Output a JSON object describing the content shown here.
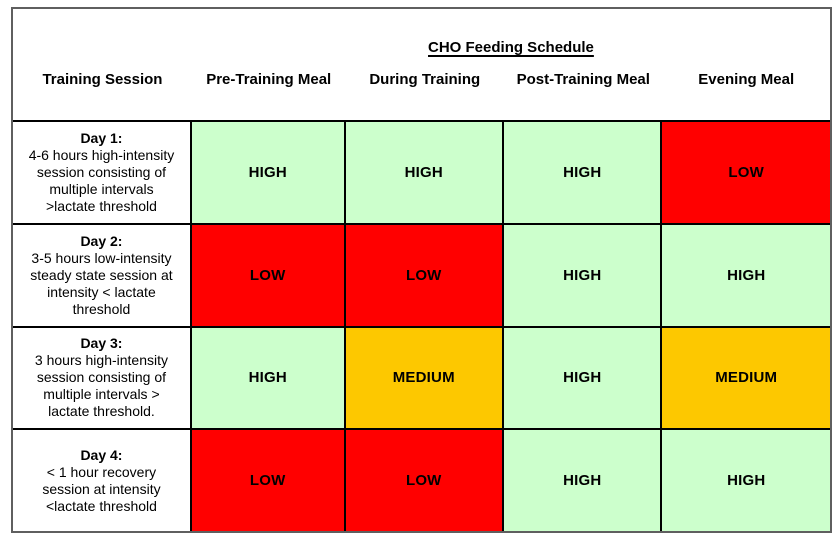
{
  "title": "CHO Feeding Schedule",
  "columns": [
    "Training Session",
    "Pre-Training Meal",
    "During Training",
    "Post-Training Meal",
    "Evening Meal"
  ],
  "rows": [
    {
      "day": "Day 1:",
      "description": "4-6 hours high-intensity session consisting of multiple intervals >lactate threshold",
      "cells": [
        {
          "label": "HIGH",
          "level": "high"
        },
        {
          "label": "HIGH",
          "level": "high"
        },
        {
          "label": "HIGH",
          "level": "high"
        },
        {
          "label": "LOW",
          "level": "low"
        }
      ]
    },
    {
      "day": "Day 2:",
      "description": "3-5 hours low-intensity steady state session at intensity < lactate threshold",
      "cells": [
        {
          "label": "LOW",
          "level": "low"
        },
        {
          "label": "LOW",
          "level": "low"
        },
        {
          "label": "HIGH",
          "level": "high"
        },
        {
          "label": "HIGH",
          "level": "high"
        }
      ]
    },
    {
      "day": "Day 3:",
      "description": "3 hours high-intensity session consisting of multiple intervals > lactate threshold.",
      "cells": [
        {
          "label": "HIGH",
          "level": "high"
        },
        {
          "label": "MEDIUM",
          "level": "medium"
        },
        {
          "label": "HIGH",
          "level": "high"
        },
        {
          "label": "MEDIUM",
          "level": "medium"
        }
      ]
    },
    {
      "day": "Day 4:",
      "description": "< 1 hour recovery session at intensity <lactate threshold",
      "cells": [
        {
          "label": "LOW",
          "level": "low"
        },
        {
          "label": "LOW",
          "level": "low"
        },
        {
          "label": "HIGH",
          "level": "high"
        },
        {
          "label": "HIGH",
          "level": "high"
        }
      ]
    }
  ],
  "colors": {
    "high": "#CCFFCC",
    "medium": "#FDC800",
    "low": "#FF0000"
  }
}
